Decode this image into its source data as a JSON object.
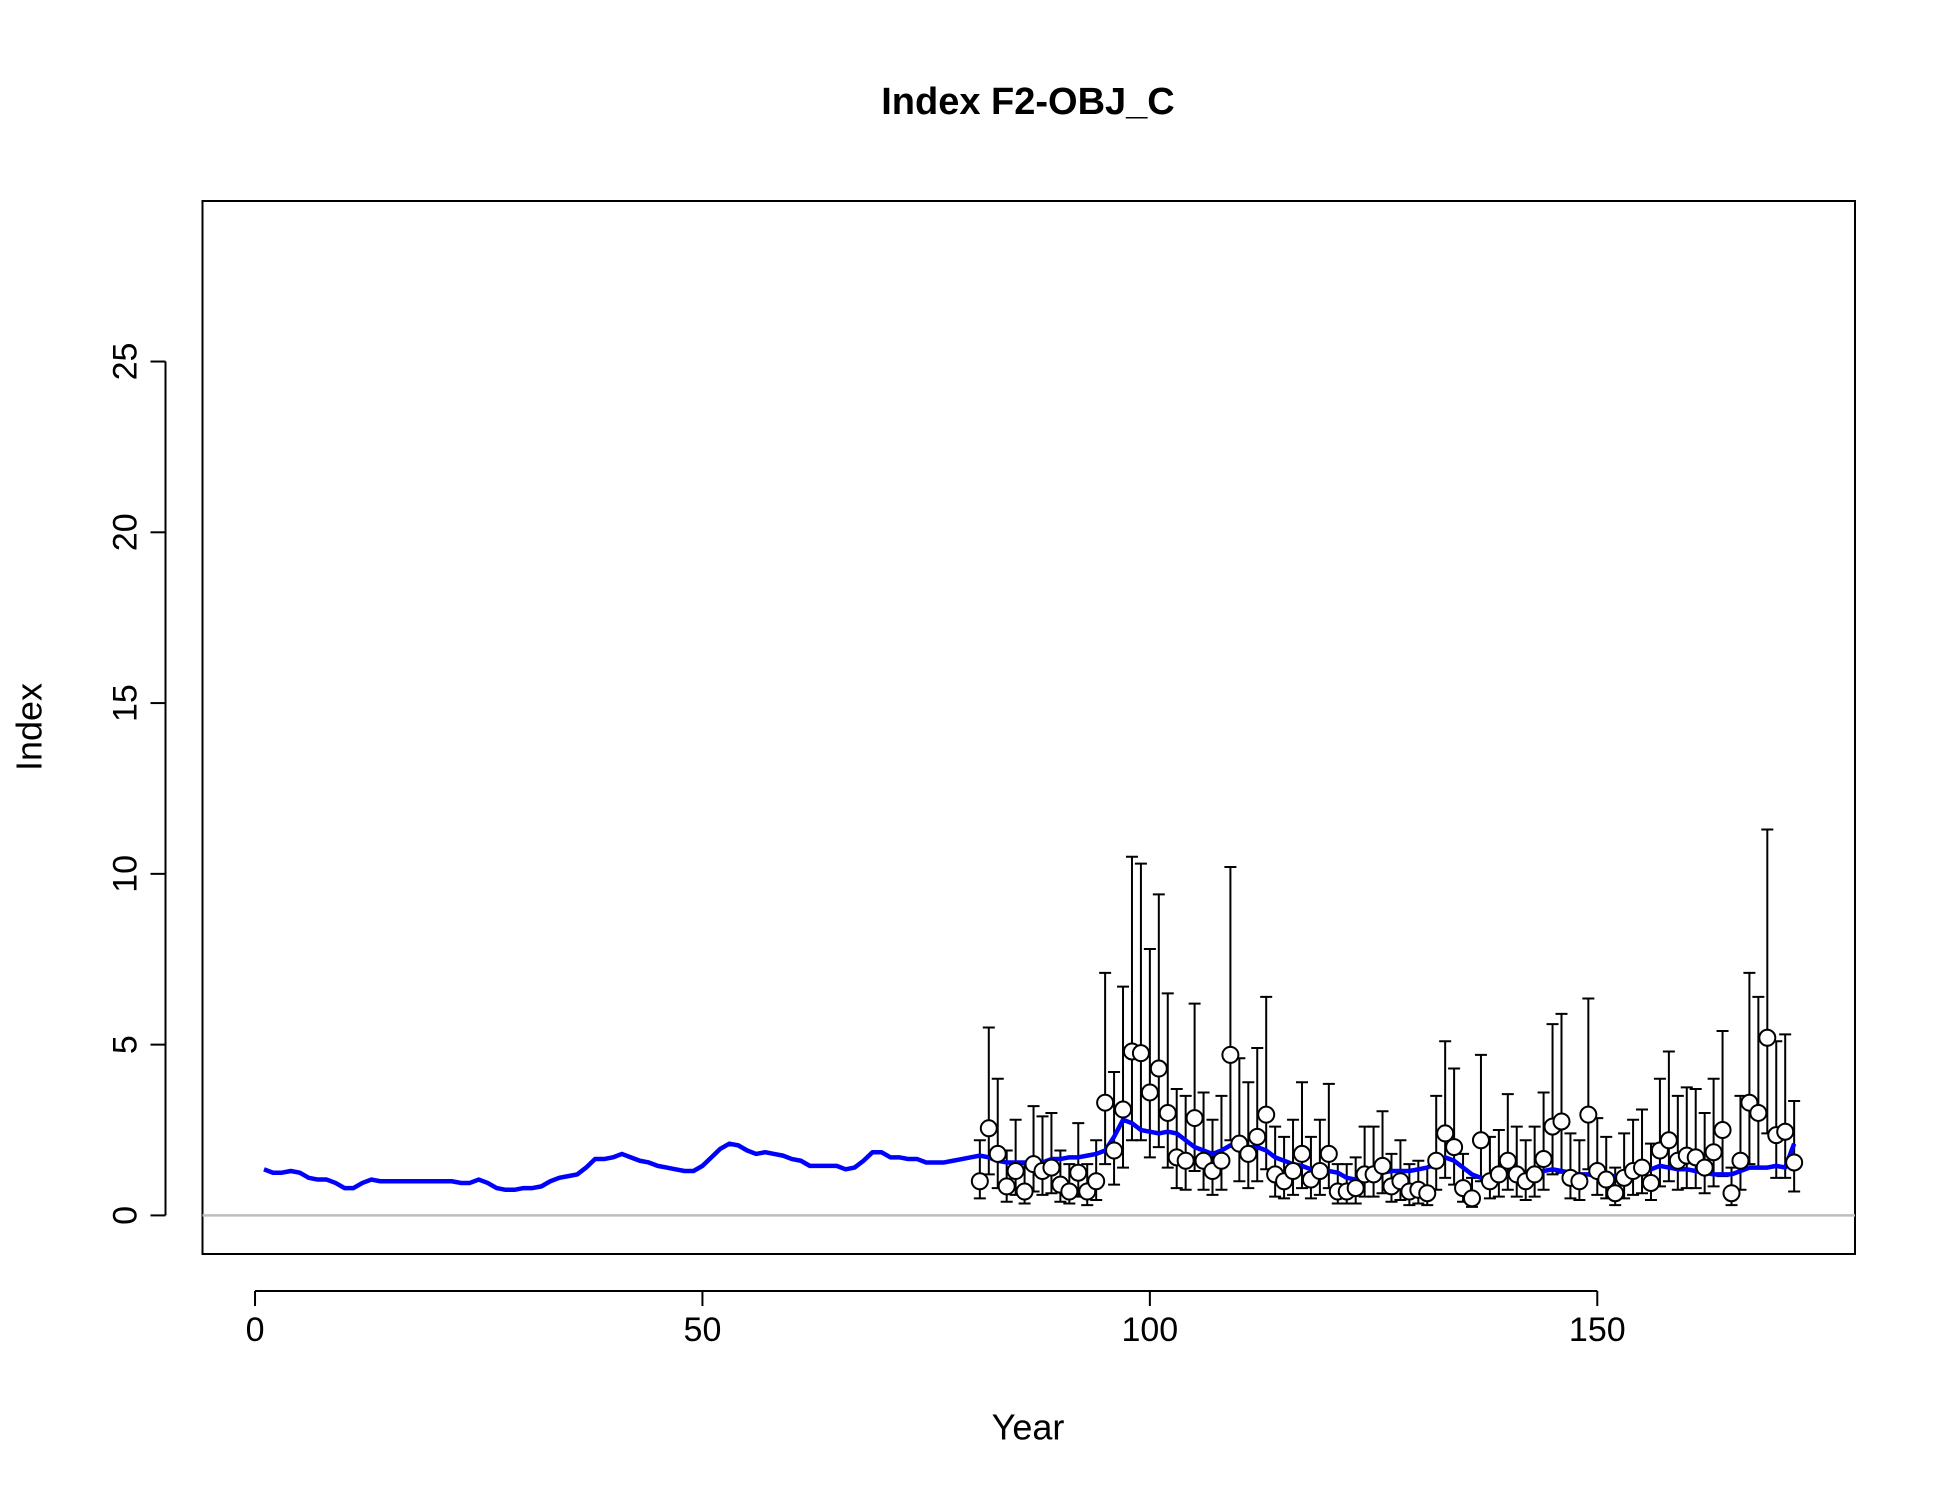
{
  "chart_data": {
    "type": "line",
    "title": "Index F2-OBJ_C",
    "x_label": "Year",
    "y_label": "Index",
    "xlim": [
      -5.87,
      178.8
    ],
    "ylim": [
      -1.13,
      29.7
    ],
    "xticks": [
      0,
      50,
      100,
      150
    ],
    "yticks": [
      0,
      5,
      10,
      15,
      20,
      25
    ],
    "reference_line": 0,
    "reference_color": "#bebebe",
    "line": {
      "color": "#0000ff",
      "x": [
        1,
        2,
        3,
        4,
        5,
        6,
        7,
        8,
        9,
        10,
        11,
        12,
        13,
        14,
        15,
        16,
        17,
        18,
        19,
        20,
        21,
        22,
        23,
        24,
        25,
        26,
        27,
        28,
        29,
        30,
        31,
        32,
        33,
        34,
        35,
        36,
        37,
        38,
        39,
        40,
        41,
        42,
        43,
        44,
        45,
        46,
        47,
        48,
        49,
        50,
        51,
        52,
        53,
        54,
        55,
        56,
        57,
        58,
        59,
        60,
        61,
        62,
        63,
        64,
        65,
        66,
        67,
        68,
        69,
        70,
        71,
        72,
        73,
        74,
        75,
        76,
        77,
        78,
        79,
        80,
        81,
        82,
        83,
        84,
        85,
        86,
        87,
        88,
        89,
        90,
        91,
        92,
        93,
        94,
        95,
        96,
        97,
        98,
        99,
        100,
        101,
        102,
        103,
        104,
        105,
        106,
        107,
        108,
        109,
        110,
        111,
        112,
        113,
        114,
        115,
        116,
        117,
        118,
        119,
        120,
        121,
        122,
        123,
        124,
        125,
        126,
        127,
        128,
        129,
        130,
        131,
        132,
        133,
        134,
        135,
        136,
        137,
        138,
        139,
        140,
        141,
        142,
        143,
        144,
        145,
        146,
        147,
        148,
        149,
        150,
        151,
        152,
        153,
        154,
        155,
        156,
        157,
        158,
        159,
        160,
        161,
        162,
        163,
        164,
        165,
        166,
        167,
        168,
        169,
        170,
        171,
        172
      ],
      "values": [
        1.35,
        1.25,
        1.25,
        1.3,
        1.25,
        1.1,
        1.05,
        1.05,
        0.95,
        0.8,
        0.8,
        0.95,
        1.05,
        1.0,
        1.0,
        1.0,
        1.0,
        1.0,
        1.0,
        1.0,
        1.0,
        1.0,
        0.95,
        0.95,
        1.05,
        0.95,
        0.8,
        0.75,
        0.75,
        0.8,
        0.8,
        0.85,
        1.0,
        1.1,
        1.15,
        1.2,
        1.4,
        1.65,
        1.65,
        1.7,
        1.8,
        1.7,
        1.6,
        1.55,
        1.45,
        1.4,
        1.35,
        1.3,
        1.3,
        1.45,
        1.7,
        1.95,
        2.1,
        2.05,
        1.9,
        1.8,
        1.85,
        1.8,
        1.75,
        1.65,
        1.6,
        1.45,
        1.45,
        1.45,
        1.45,
        1.35,
        1.4,
        1.6,
        1.85,
        1.85,
        1.7,
        1.7,
        1.65,
        1.65,
        1.55,
        1.55,
        1.55,
        1.6,
        1.65,
        1.7,
        1.75,
        1.7,
        1.6,
        1.55,
        1.55,
        1.55,
        1.5,
        1.55,
        1.65,
        1.65,
        1.7,
        1.7,
        1.75,
        1.8,
        1.9,
        2.3,
        2.8,
        2.7,
        2.5,
        2.45,
        2.4,
        2.45,
        2.4,
        2.2,
        2.0,
        1.9,
        1.8,
        1.9,
        2.05,
        2.0,
        2.0,
        2.0,
        1.9,
        1.7,
        1.6,
        1.5,
        1.45,
        1.35,
        1.35,
        1.3,
        1.25,
        1.1,
        1.05,
        1.15,
        1.2,
        1.25,
        1.3,
        1.3,
        1.3,
        1.35,
        1.4,
        1.55,
        1.7,
        1.6,
        1.4,
        1.2,
        1.1,
        1.1,
        1.15,
        1.15,
        1.2,
        1.2,
        1.25,
        1.3,
        1.35,
        1.3,
        1.25,
        1.2,
        1.2,
        1.15,
        1.15,
        1.15,
        1.15,
        1.2,
        1.25,
        1.35,
        1.45,
        1.4,
        1.35,
        1.35,
        1.3,
        1.25,
        1.2,
        1.2,
        1.2,
        1.3,
        1.4,
        1.4,
        1.4,
        1.45,
        1.4,
        2.1
      ]
    },
    "points": {
      "color": "#ffffff",
      "x": [
        81,
        82,
        83,
        84,
        85,
        86,
        87,
        88,
        89,
        90,
        91,
        92,
        93,
        94,
        95,
        96,
        97,
        98,
        99,
        100,
        101,
        102,
        103,
        104,
        105,
        106,
        107,
        108,
        109,
        110,
        111,
        112,
        113,
        114,
        115,
        116,
        117,
        118,
        119,
        120,
        121,
        122,
        123,
        124,
        125,
        126,
        127,
        128,
        129,
        130,
        131,
        132,
        133,
        134,
        135,
        136,
        137,
        138,
        139,
        140,
        141,
        142,
        143,
        144,
        145,
        146,
        147,
        148,
        149,
        150,
        151,
        152,
        153,
        154,
        155,
        156,
        157,
        158,
        159,
        160,
        161,
        162,
        163,
        164,
        165,
        166,
        167,
        168,
        169,
        170,
        171,
        172
      ],
      "values": [
        1.0,
        2.55,
        1.8,
        0.85,
        1.3,
        0.7,
        1.5,
        1.3,
        1.4,
        0.9,
        0.7,
        1.25,
        0.7,
        1.0,
        3.3,
        1.9,
        3.1,
        4.8,
        4.75,
        3.6,
        4.3,
        3.0,
        1.7,
        1.6,
        2.85,
        1.6,
        1.3,
        1.6,
        4.7,
        2.1,
        1.8,
        2.3,
        2.95,
        1.2,
        1.0,
        1.3,
        1.8,
        1.05,
        1.3,
        1.8,
        0.7,
        0.7,
        0.8,
        1.2,
        1.2,
        1.45,
        0.85,
        1.0,
        0.7,
        0.75,
        0.65,
        1.6,
        2.4,
        2.0,
        0.8,
        0.5,
        2.2,
        1.0,
        1.2,
        1.6,
        1.2,
        1.0,
        1.2,
        1.65,
        2.6,
        2.75,
        1.1,
        1.0,
        2.95,
        1.3,
        1.05,
        0.65,
        1.1,
        1.3,
        1.4,
        0.95,
        1.9,
        2.2,
        1.6,
        1.75,
        1.7,
        1.4,
        1.85,
        2.5,
        0.65,
        1.6,
        3.3,
        3.0,
        5.2,
        2.35,
        2.45,
        1.55
      ],
      "lower": [
        0.5,
        1.2,
        0.8,
        0.4,
        0.6,
        0.35,
        0.7,
        0.6,
        0.65,
        0.4,
        0.35,
        0.55,
        0.3,
        0.45,
        1.5,
        0.9,
        1.4,
        2.2,
        2.2,
        1.7,
        2.0,
        1.4,
        0.8,
        0.75,
        1.3,
        0.75,
        0.6,
        0.75,
        2.2,
        1.0,
        0.8,
        1.0,
        1.35,
        0.55,
        0.5,
        0.6,
        0.8,
        0.5,
        0.6,
        0.8,
        0.35,
        0.35,
        0.35,
        0.55,
        0.55,
        0.65,
        0.4,
        0.45,
        0.3,
        0.35,
        0.3,
        0.75,
        1.1,
        0.9,
        0.4,
        0.25,
        1.0,
        0.5,
        0.55,
        0.75,
        0.55,
        0.45,
        0.55,
        0.75,
        1.2,
        1.25,
        0.5,
        0.45,
        1.35,
        0.6,
        0.5,
        0.3,
        0.5,
        0.6,
        0.65,
        0.45,
        0.85,
        1.0,
        0.75,
        0.8,
        0.8,
        0.65,
        0.85,
        1.15,
        0.3,
        0.75,
        1.5,
        1.4,
        2.4,
        1.1,
        1.1,
        0.7
      ],
      "upper": [
        2.2,
        5.5,
        4.0,
        1.9,
        2.8,
        1.5,
        3.2,
        2.9,
        3.0,
        1.9,
        1.5,
        2.7,
        1.5,
        2.2,
        7.1,
        4.2,
        6.7,
        10.5,
        10.3,
        7.8,
        9.4,
        6.5,
        3.7,
        3.5,
        6.2,
        3.6,
        2.8,
        3.5,
        10.2,
        4.6,
        3.9,
        4.9,
        6.4,
        2.6,
        2.3,
        2.8,
        3.9,
        2.3,
        2.8,
        3.85,
        1.5,
        1.5,
        1.7,
        2.6,
        2.6,
        3.05,
        1.8,
        2.2,
        1.5,
        1.6,
        1.4,
        3.5,
        5.1,
        4.3,
        1.8,
        1.1,
        4.7,
        2.3,
        2.5,
        3.55,
        2.6,
        2.2,
        2.6,
        3.6,
        5.6,
        5.9,
        2.4,
        2.2,
        6.35,
        2.85,
        2.3,
        1.4,
        2.4,
        2.8,
        3.1,
        2.1,
        4.0,
        4.8,
        3.5,
        3.75,
        3.7,
        3.0,
        4.0,
        5.4,
        1.4,
        3.5,
        7.1,
        6.4,
        11.3,
        5.1,
        5.3,
        3.35
      ]
    }
  }
}
